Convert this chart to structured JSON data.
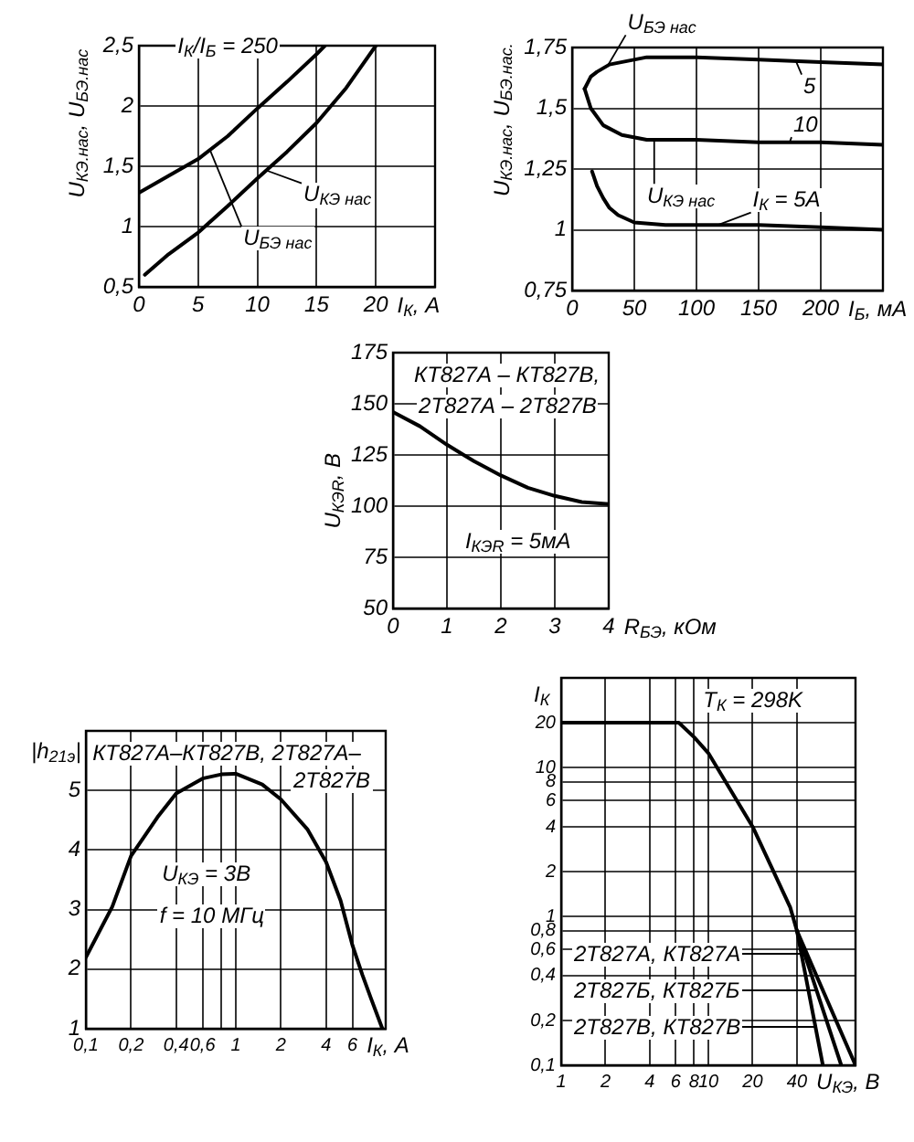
{
  "chart_data": [
    {
      "type": "line",
      "xlabel": "I$_{К}$, А",
      "ylabel": "U$_{КЭ.нас}$, U$_{БЭ.нас}$",
      "annotations": [
        "I$_{К}$/I$_{Б}$ = 250"
      ],
      "series": [
        {
          "name": "U$_{БЭ нас}$",
          "color": "#000000",
          "x": [
            0,
            2.5,
            5,
            7.5,
            10,
            12.5,
            15,
            15.7
          ],
          "values": [
            1.28,
            1.42,
            1.56,
            1.75,
            1.98,
            2.2,
            2.43,
            2.5
          ]
        },
        {
          "name": "U$_{КЭ нас}$",
          "color": "#000000",
          "x": [
            0.5,
            2.5,
            5,
            7.5,
            10,
            12.5,
            15,
            17.5,
            20
          ],
          "values": [
            0.6,
            0.77,
            0.95,
            1.17,
            1.4,
            1.62,
            1.86,
            2.15,
            2.5
          ]
        }
      ],
      "xlim": [
        0,
        25
      ],
      "ylim": [
        0.5,
        2.5
      ],
      "xticks": [
        0,
        5,
        10,
        15,
        20
      ],
      "yticks": [
        {
          "value": 0.5,
          "label": "0,5"
        },
        1,
        {
          "value": 1.5,
          "label": "1,5"
        },
        2,
        {
          "value": 2.5,
          "label": "2,5"
        }
      ],
      "grid": true
    },
    {
      "type": "line",
      "xlabel": "I$_{Б}$, мА",
      "ylabel": "U$_{КЭ.нас}$, U$_{БЭ.нас.}$",
      "annotations": [
        {
          "text": "U$_{БЭ нас}$",
          "x": 28,
          "y": 1.67
        },
        {
          "text": "U$_{КЭ нас}$",
          "x": 66,
          "y": 1.37
        }
      ],
      "series": [
        {
          "name": "5",
          "color": "#000000",
          "x": [
            10,
            15,
            20,
            30,
            60,
            100,
            150,
            200,
            250
          ],
          "values": [
            1.58,
            1.63,
            1.65,
            1.68,
            1.71,
            1.71,
            1.7,
            1.69,
            1.68
          ]
        },
        {
          "name": "10",
          "color": "#000000",
          "x": [
            10,
            15,
            25,
            40,
            60,
            100,
            150,
            200,
            250
          ],
          "values": [
            1.58,
            1.5,
            1.43,
            1.39,
            1.37,
            1.37,
            1.36,
            1.36,
            1.35
          ]
        },
        {
          "name": "I$_{К}$ = 5А",
          "color": "#000000",
          "x": [
            16,
            20,
            25,
            30,
            37,
            50,
            75,
            100,
            150,
            200,
            250
          ],
          "values": [
            1.24,
            1.18,
            1.13,
            1.09,
            1.06,
            1.03,
            1.02,
            1.02,
            1.02,
            1.01,
            1.0
          ]
        }
      ],
      "xlim": [
        0,
        250
      ],
      "ylim": [
        0.75,
        1.75
      ],
      "xticks": [
        0,
        50,
        100,
        150,
        200
      ],
      "yticks": [
        {
          "value": 0.75,
          "label": "0,75"
        },
        1,
        {
          "value": 1.25,
          "label": "1,25"
        },
        {
          "value": 1.5,
          "label": "1,5"
        },
        {
          "value": 1.75,
          "label": "1,75"
        }
      ],
      "grid": true
    },
    {
      "type": "line",
      "xlabel": "R$_{БЭ}$, кОм",
      "ylabel": "U$_{КЭR}$, В",
      "annotations": [
        "КТ827А – КТ827В,",
        "2Т827А – 2Т827В",
        "I$_{КЭR}$ = 5мА"
      ],
      "x": [
        0,
        0.5,
        1,
        1.5,
        2,
        2.5,
        3,
        3.5,
        4
      ],
      "values": [
        146,
        139,
        130,
        122,
        115,
        109,
        105,
        102,
        101
      ],
      "color": "#000000",
      "xlim": [
        0,
        4
      ],
      "ylim": [
        50,
        175
      ],
      "xticks": [
        0,
        1,
        2,
        3,
        4
      ],
      "yticks": [
        50,
        75,
        100,
        125,
        150,
        175
      ],
      "grid": true
    },
    {
      "type": "line",
      "xlabel": "I$_{К}$, А",
      "ylabel": "|h$_{21э}$|",
      "annotations": [
        "КТ827А–КТ827В, 2Т827А–",
        "2Т827В",
        "U$_{КЭ}$ = 3В",
        "f = 10 МГц"
      ],
      "x": [
        0.1,
        0.15,
        0.2,
        0.3,
        0.4,
        0.6,
        0.8,
        1,
        1.5,
        2,
        3,
        4,
        5,
        6,
        7,
        8,
        9.5
      ],
      "values": [
        2.2,
        3.05,
        3.9,
        4.55,
        4.95,
        5.2,
        5.27,
        5.28,
        5.1,
        4.85,
        4.35,
        3.8,
        3.15,
        2.4,
        1.9,
        1.5,
        1
      ],
      "color": "#000000",
      "log": "x",
      "xlim": [
        0.1,
        10
      ],
      "ylim": [
        1,
        6
      ],
      "xticks": [
        {
          "value": 0.1,
          "label": "0,1"
        },
        {
          "value": 0.2,
          "label": "0,2"
        },
        {
          "value": 0.4,
          "label": "0,4"
        },
        {
          "value": 0.6,
          "label": "0,6"
        },
        {
          "value": 0.8,
          "label": null
        },
        1,
        2,
        4,
        6
      ],
      "yticks": [
        1,
        2,
        3,
        4,
        5
      ],
      "grid": true
    },
    {
      "type": "line",
      "xlabel": "U$_{КЭ}$, В",
      "ylabel": "I$_{К}$",
      "annotations": [
        "T$_{К}$ = 298K"
      ],
      "series": [
        {
          "name": "2Т827А, КТ827А",
          "color": "#000000",
          "x": [
            1,
            6.3,
            8,
            10,
            20,
            36,
            40,
            100
          ],
          "values": [
            20,
            20,
            16,
            12.5,
            4,
            1.15,
            0.8,
            0.1
          ]
        },
        {
          "name": "2Т827Б, КТ827Б",
          "color": "#000000",
          "x": [
            40,
            80
          ],
          "values": [
            0.8,
            0.1
          ]
        },
        {
          "name": "2Т827В, КТ827В",
          "color": "#000000",
          "x": [
            40,
            60
          ],
          "values": [
            0.8,
            0.1
          ]
        }
      ],
      "log": "xy",
      "xlim": [
        1,
        100
      ],
      "ylim": [
        0.1,
        40
      ],
      "xticks": [
        1,
        2,
        4,
        6,
        8,
        10,
        20,
        40
      ],
      "yticks": [
        {
          "value": 0.1,
          "label": "0,1"
        },
        {
          "value": 0.2,
          "label": "0,2"
        },
        {
          "value": 0.4,
          "label": "0,4"
        },
        {
          "value": 0.6,
          "label": "0,6"
        },
        {
          "value": 0.8,
          "label": "0,8"
        },
        1,
        2,
        4,
        6,
        8,
        10,
        20
      ],
      "grid": true,
      "legend": "bottom left"
    }
  ]
}
